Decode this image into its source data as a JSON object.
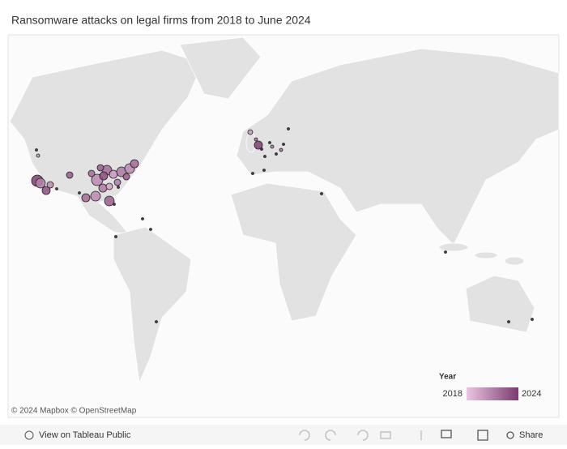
{
  "header": {
    "title": "Ransomware attacks on legal firms from 2018 to June 2024"
  },
  "map": {
    "attribution": "© 2024 Mapbox © OpenStreetMap",
    "legend": {
      "title": "Year",
      "min": 2018,
      "max": 2024,
      "color_min": "#ecc6e2",
      "color_max": "#7a3a6e"
    }
  },
  "toolbar": {
    "view": "View on Tableau Public",
    "share": "Share"
  }
}
